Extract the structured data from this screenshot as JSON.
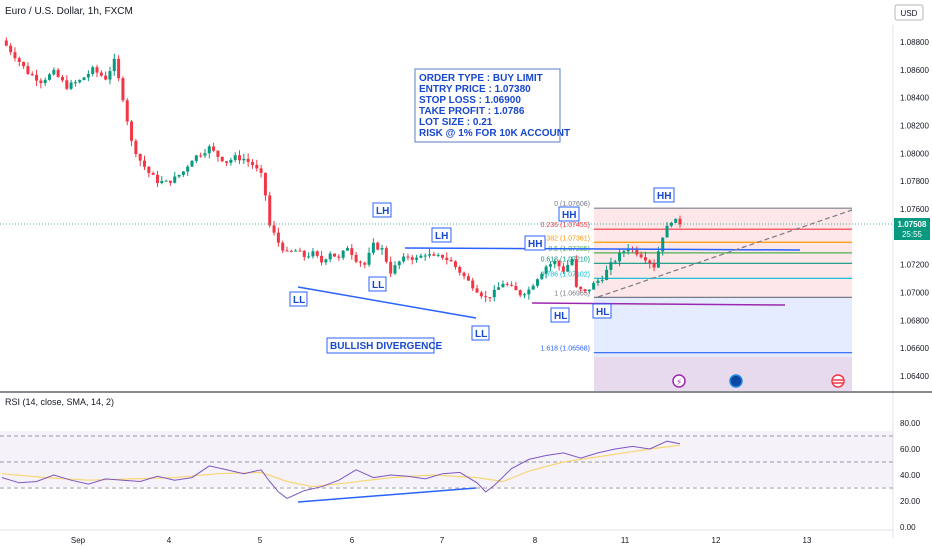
{
  "chart_data": [
    {
      "type": "candlestick",
      "title": "Euro / U.S. Dollar, 1h, FXCM",
      "currency_label": "USD",
      "price_ticks": [
        "1.08800",
        "1.08600",
        "1.08400",
        "1.08200",
        "1.08000",
        "1.07800",
        "1.07600",
        "1.07400",
        "1.07200",
        "1.07000",
        "1.06800",
        "1.06600",
        "1.06400"
      ],
      "ylim": [
        1.063,
        1.089
      ],
      "current_price": "1.07508",
      "countdown": "25:55",
      "x_ticks": [
        "Sep",
        "4",
        "5",
        "6",
        "7",
        "8",
        "11",
        "12",
        "13"
      ],
      "close_path": [
        [
          0,
          1.0881
        ],
        [
          3,
          1.087
        ],
        [
          6,
          1.0858
        ],
        [
          9,
          1.0852
        ],
        [
          12,
          1.0858
        ],
        [
          15,
          1.0848
        ],
        [
          18,
          1.0852
        ],
        [
          21,
          1.086
        ],
        [
          24,
          1.0854
        ],
        [
          26,
          1.0866
        ],
        [
          28,
          1.084
        ],
        [
          30,
          1.0808
        ],
        [
          32,
          1.0795
        ],
        [
          34,
          1.0786
        ],
        [
          36,
          1.078
        ],
        [
          38,
          1.0779
        ],
        [
          40,
          1.0782
        ],
        [
          42,
          1.0787
        ],
        [
          44,
          1.0796
        ],
        [
          46,
          1.08
        ],
        [
          48,
          1.0804
        ],
        [
          50,
          1.0798
        ],
        [
          52,
          1.0794
        ],
        [
          54,
          1.0797
        ],
        [
          56,
          1.0796
        ],
        [
          58,
          1.0792
        ],
        [
          60,
          1.0784
        ],
        [
          61,
          1.077
        ],
        [
          62,
          1.0748
        ],
        [
          64,
          1.0736
        ],
        [
          66,
          1.0728
        ],
        [
          68,
          1.073
        ],
        [
          70,
          1.0726
        ],
        [
          72,
          1.0728
        ],
        [
          74,
          1.0722
        ],
        [
          76,
          1.0729
        ],
        [
          78,
          1.0724
        ],
        [
          80,
          1.0733
        ],
        [
          82,
          1.0724
        ],
        [
          84,
          1.072
        ],
        [
          86,
          1.0734
        ],
        [
          88,
          1.0731
        ],
        [
          90,
          1.0715
        ],
        [
          92,
          1.0722
        ],
        [
          94,
          1.0726
        ],
        [
          96,
          1.0724
        ],
        [
          98,
          1.0728
        ],
        [
          100,
          1.0725
        ],
        [
          102,
          1.0726
        ],
        [
          104,
          1.0722
        ],
        [
          106,
          1.0715
        ],
        [
          108,
          1.0708
        ],
        [
          110,
          1.0702
        ],
        [
          112,
          1.0696
        ],
        [
          114,
          1.07
        ],
        [
          116,
          1.0707
        ],
        [
          118,
          1.0703
        ],
        [
          120,
          1.0699
        ],
        [
          122,
          1.0702
        ],
        [
          124,
          1.0711
        ],
        [
          126,
          1.0719
        ],
        [
          128,
          1.0722
        ],
        [
          130,
          1.0716
        ],
        [
          132,
          1.0724
        ],
        [
          133,
          1.0703
        ],
        [
          135,
          1.07
        ],
        [
          137,
          1.0706
        ],
        [
          139,
          1.0711
        ],
        [
          141,
          1.072
        ],
        [
          143,
          1.0727
        ],
        [
          145,
          1.0733
        ],
        [
          147,
          1.0729
        ],
        [
          149,
          1.0725
        ],
        [
          151,
          1.0719
        ],
        [
          153,
          1.0741
        ],
        [
          155,
          1.0752
        ],
        [
          157,
          1.075
        ]
      ],
      "order_box": [
        "ORDER TYPE :  BUY LIMIT",
        "ENTRY PRICE : 1.07380",
        "STOP LOSS : 1.06900",
        "TAKE PROFIT :  1.0786",
        "LOT SIZE : 0.21",
        "RISK @ 1% FOR 10K ACCOUNT"
      ],
      "structure_labels": [
        "LL",
        "LL",
        "LH",
        "LH",
        "LL",
        "HH",
        "HH",
        "HL",
        "HL",
        "HH"
      ],
      "divergence_label": "BULLISH DIVERGENCE",
      "fib_levels": [
        {
          "label": "0 (1.07606)",
          "price": 1.07606,
          "color": "#787b86"
        },
        {
          "label": "0.236 (1.07455)",
          "price": 1.07455,
          "color": "#f23645"
        },
        {
          "label": "0.382 (1.07361)",
          "price": 1.07361,
          "color": "#ff9800"
        },
        {
          "label": "0.5 (1.07285)",
          "price": 1.07285,
          "color": "#4caf50"
        },
        {
          "label": "0.618 (1.07210)",
          "price": 1.0721,
          "color": "#089981"
        },
        {
          "label": "0.786 (1.07102)",
          "price": 1.07102,
          "color": "#00bcd4"
        },
        {
          "label": "1 (1.06965)",
          "price": 1.06965,
          "color": "#787b86"
        },
        {
          "label": "1.618 (1.06568)",
          "price": 1.06568,
          "color": "#2962ff"
        }
      ]
    },
    {
      "type": "line",
      "title": "RSI (14, close, SMA, 14, 2)",
      "ylim": [
        0,
        90
      ],
      "y_ticks": [
        "80.00",
        "60.00",
        "40.00",
        "20.00",
        "0.00"
      ],
      "bands": [
        70,
        50,
        30
      ],
      "rsi": [
        [
          0,
          38
        ],
        [
          4,
          34
        ],
        [
          8,
          35
        ],
        [
          12,
          40
        ],
        [
          16,
          36
        ],
        [
          20,
          33
        ],
        [
          24,
          37
        ],
        [
          28,
          36
        ],
        [
          32,
          35
        ],
        [
          36,
          39
        ],
        [
          40,
          36
        ],
        [
          44,
          38
        ],
        [
          48,
          47
        ],
        [
          52,
          44
        ],
        [
          56,
          41
        ],
        [
          60,
          44
        ],
        [
          62,
          35
        ],
        [
          64,
          27
        ],
        [
          66,
          22
        ],
        [
          68,
          25
        ],
        [
          70,
          28
        ],
        [
          74,
          31
        ],
        [
          78,
          36
        ],
        [
          82,
          44
        ],
        [
          86,
          38
        ],
        [
          90,
          40
        ],
        [
          94,
          39
        ],
        [
          98,
          37
        ],
        [
          102,
          41
        ],
        [
          106,
          42
        ],
        [
          110,
          34
        ],
        [
          112,
          27
        ],
        [
          114,
          32
        ],
        [
          118,
          45
        ],
        [
          122,
          52
        ],
        [
          126,
          55
        ],
        [
          130,
          57
        ],
        [
          134,
          53
        ],
        [
          138,
          57
        ],
        [
          142,
          60
        ],
        [
          146,
          62
        ],
        [
          150,
          60
        ],
        [
          154,
          66
        ],
        [
          157,
          64
        ]
      ],
      "rsi_ma": [
        [
          0,
          41
        ],
        [
          10,
          38
        ],
        [
          20,
          36
        ],
        [
          30,
          37
        ],
        [
          40,
          38
        ],
        [
          50,
          41
        ],
        [
          60,
          42
        ],
        [
          66,
          35
        ],
        [
          72,
          31
        ],
        [
          80,
          34
        ],
        [
          90,
          38
        ],
        [
          100,
          40
        ],
        [
          110,
          38
        ],
        [
          116,
          35
        ],
        [
          122,
          43
        ],
        [
          130,
          50
        ],
        [
          140,
          55
        ],
        [
          150,
          60
        ],
        [
          157,
          63
        ]
      ]
    }
  ]
}
